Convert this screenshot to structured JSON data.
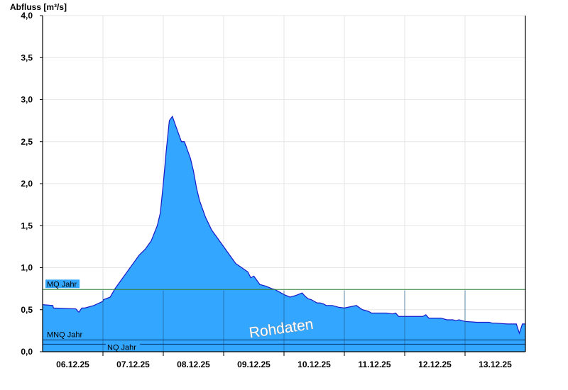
{
  "chart_data": {
    "type": "area",
    "ylabel": "Abfluss [m³/s]",
    "xlabel": "",
    "title": "",
    "ylim": [
      0.0,
      4.0
    ],
    "y_ticks": [
      "0,0",
      "0,5",
      "1,0",
      "1,5",
      "2,0",
      "2,5",
      "3,0",
      "3,5",
      "4,0"
    ],
    "x_range": [
      0,
      8
    ],
    "x_ticks": [
      {
        "pos": 0.5,
        "label": "06.12.25"
      },
      {
        "pos": 1.5,
        "label": "07.12.25"
      },
      {
        "pos": 2.5,
        "label": "08.12.25"
      },
      {
        "pos": 3.5,
        "label": "09.12.25"
      },
      {
        "pos": 4.5,
        "label": "10.12.25"
      },
      {
        "pos": 5.5,
        "label": "11.12.25"
      },
      {
        "pos": 6.5,
        "label": "12.12.25"
      },
      {
        "pos": 7.5,
        "label": "13.12.25"
      }
    ],
    "day_boundaries": [
      1,
      2,
      3,
      4,
      5,
      6,
      7
    ],
    "grid": true,
    "fill_color": "#33a6ff",
    "line_color": "#1818c8",
    "reference_lines": [
      {
        "label": "MQ Jahr",
        "value": 0.74,
        "color": "#2e7d32"
      },
      {
        "label": "MNQ Jahr",
        "value": 0.14,
        "color": "#003366"
      },
      {
        "label": "NQ Jahr",
        "value": 0.09,
        "color": "#003366"
      }
    ],
    "watermark": "Rohdaten",
    "series": [
      {
        "x": [
          0.0,
          0.17,
          0.18,
          0.55,
          0.6,
          0.65,
          0.7,
          0.85,
          1.0,
          1.01,
          1.12,
          1.2,
          1.3,
          1.4,
          1.5,
          1.6,
          1.7,
          1.8,
          1.9,
          1.95,
          2.0,
          2.05,
          2.1,
          2.15,
          2.2,
          2.25,
          2.3,
          2.35,
          2.4,
          2.45,
          2.5,
          2.55,
          2.6,
          2.7,
          2.8,
          2.9,
          3.0,
          3.1,
          3.2,
          3.3,
          3.4,
          3.45,
          3.5,
          3.55,
          3.6,
          3.7,
          3.8,
          3.85,
          3.9,
          3.95,
          4.0,
          4.1,
          4.2,
          4.3,
          4.35,
          4.4,
          4.45,
          4.5,
          4.55,
          4.6,
          4.65,
          4.7,
          4.75,
          4.8,
          4.9,
          5.0,
          5.2,
          5.3,
          5.4,
          5.45,
          5.5,
          5.6,
          5.7,
          5.8,
          5.85,
          5.9,
          6.0,
          6.2,
          6.3,
          6.35,
          6.4,
          6.6,
          6.7,
          6.8,
          6.85,
          6.9,
          7.0,
          7.2,
          7.4,
          7.45,
          7.5,
          7.7,
          7.8,
          7.85,
          7.9,
          7.95,
          8.0
        ],
        "y": [
          0.56,
          0.55,
          0.52,
          0.51,
          0.47,
          0.52,
          0.52,
          0.55,
          0.6,
          0.62,
          0.65,
          0.75,
          0.85,
          0.95,
          1.05,
          1.15,
          1.22,
          1.32,
          1.5,
          1.65,
          2.0,
          2.4,
          2.75,
          2.8,
          2.7,
          2.6,
          2.5,
          2.5,
          2.4,
          2.3,
          2.15,
          1.95,
          1.8,
          1.6,
          1.45,
          1.35,
          1.25,
          1.15,
          1.05,
          1.0,
          0.95,
          0.88,
          0.9,
          0.85,
          0.8,
          0.78,
          0.75,
          0.74,
          0.72,
          0.7,
          0.68,
          0.65,
          0.67,
          0.7,
          0.66,
          0.63,
          0.62,
          0.6,
          0.58,
          0.58,
          0.57,
          0.55,
          0.55,
          0.55,
          0.53,
          0.52,
          0.55,
          0.5,
          0.48,
          0.46,
          0.46,
          0.46,
          0.46,
          0.45,
          0.46,
          0.42,
          0.42,
          0.42,
          0.42,
          0.44,
          0.4,
          0.4,
          0.38,
          0.38,
          0.37,
          0.38,
          0.36,
          0.35,
          0.35,
          0.34,
          0.34,
          0.33,
          0.33,
          0.33,
          0.22,
          0.33,
          0.33
        ]
      }
    ]
  }
}
